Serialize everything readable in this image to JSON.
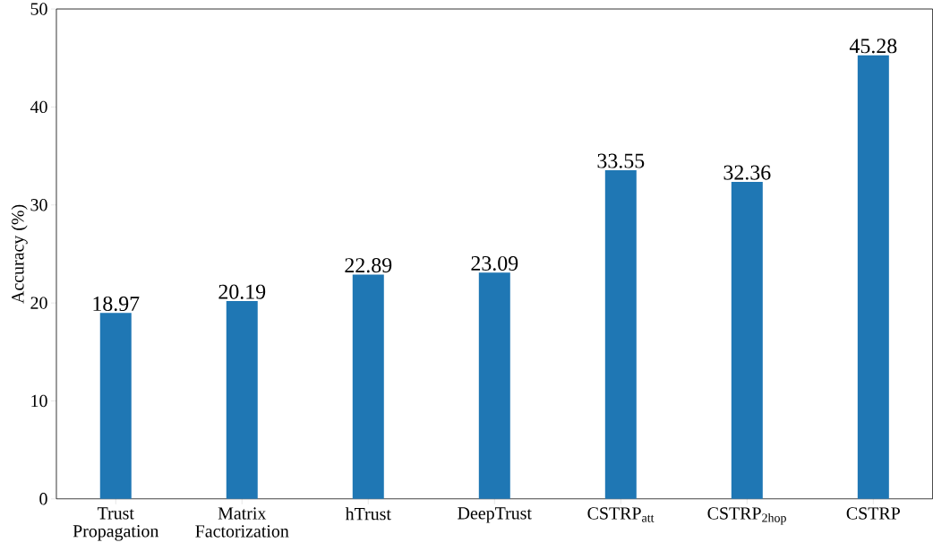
{
  "chart_data": {
    "type": "bar",
    "ylabel": "Accuracy (%)",
    "categories": [
      "Trust Propagation",
      "Matrix Factorization",
      "hTrust",
      "DeepTrust",
      "CSTRP$_{att}$",
      "CSTRP$_{2hop}$",
      "CSTRP"
    ],
    "values": [
      18.97,
      20.19,
      22.89,
      23.09,
      33.55,
      32.36,
      45.28
    ],
    "color": "#1f77b4",
    "ylim": [
      0,
      50
    ],
    "yticks": [
      0,
      10,
      20,
      30,
      40,
      50
    ],
    "data_labels": true
  }
}
